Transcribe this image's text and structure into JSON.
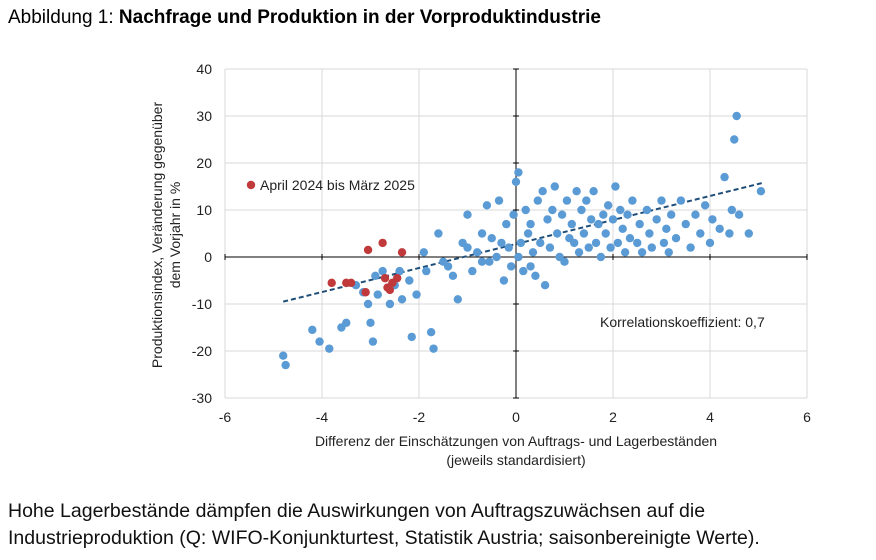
{
  "figure": {
    "title_prefix": "Abbildung 1: ",
    "title_main": "Nachfrage und Produktion in der Vorproduktindustrie",
    "caption": "Hohe Lagerbestände dämpfen die Auswirkungen von Auftragszuwächsen auf die Industrieproduktion (Q: WIFO-Konjunkturtest, Statistik Austria; saisonbereinigte Werte)."
  },
  "colors": {
    "blue_points": "#5B9BD5",
    "red_points": "#C0393B",
    "trend_line": "#1F4E79",
    "grid": "#D9D9D9",
    "axis": "#000000"
  },
  "chart_data": {
    "type": "scatter",
    "xlabel_line1": "Differenz der Einschätzungen von Auftrags- und Lagerbeständen",
    "xlabel_line2": "(jeweils standardisiert)",
    "ylabel_line1": "Produktionsindex, Veränderung gegenüber",
    "ylabel_line2": "dem Vorjahr in %",
    "xlim": [
      -6,
      6
    ],
    "ylim": [
      -30,
      40
    ],
    "x_ticks": [
      "-6",
      "-4",
      "-2",
      "0",
      "2",
      "4",
      "6"
    ],
    "y_ticks": [
      "40",
      "30",
      "20",
      "10",
      "0",
      "-10",
      "-20",
      "-30"
    ],
    "grid": "vertical and horizontal",
    "annotation": "Korrelationskoeffizient: 0,7",
    "legend": [
      {
        "label": "April 2024 bis März 2025",
        "color": "#C0393B"
      }
    ],
    "trendline": {
      "x": [
        -4.8,
        5.1
      ],
      "y": [
        -9.5,
        15.8
      ]
    },
    "series": [
      {
        "name": "",
        "color": "#5B9BD5",
        "points": [
          [
            -4.8,
            -21
          ],
          [
            -4.75,
            -23
          ],
          [
            -4.2,
            -15.5
          ],
          [
            -4.05,
            -18
          ],
          [
            -3.85,
            -19.5
          ],
          [
            -3.6,
            -15
          ],
          [
            -3.5,
            -14
          ],
          [
            -3.3,
            -6
          ],
          [
            -3.15,
            -7.5
          ],
          [
            -3.05,
            -10
          ],
          [
            -3.0,
            -14
          ],
          [
            -2.95,
            -18
          ],
          [
            -2.9,
            -4
          ],
          [
            -2.85,
            -8
          ],
          [
            -2.75,
            -3
          ],
          [
            -2.6,
            -10
          ],
          [
            -2.5,
            -6
          ],
          [
            -2.4,
            -3
          ],
          [
            -2.35,
            -9
          ],
          [
            -2.2,
            -5
          ],
          [
            -2.15,
            -17
          ],
          [
            -2.05,
            -8
          ],
          [
            -1.9,
            1
          ],
          [
            -1.85,
            -3
          ],
          [
            -1.75,
            -16
          ],
          [
            -1.7,
            -19.5
          ],
          [
            -1.6,
            5
          ],
          [
            -1.5,
            -1
          ],
          [
            -1.4,
            -2
          ],
          [
            -1.3,
            -4
          ],
          [
            -1.2,
            -9
          ],
          [
            -1.1,
            3
          ],
          [
            -1.0,
            9
          ],
          [
            -0.9,
            -3
          ],
          [
            -0.8,
            1
          ],
          [
            -0.7,
            5
          ],
          [
            -0.6,
            11
          ],
          [
            -0.55,
            -1
          ],
          [
            -0.5,
            4
          ],
          [
            -0.4,
            0
          ],
          [
            -0.35,
            12
          ],
          [
            -0.3,
            3
          ],
          [
            -0.25,
            -5
          ],
          [
            -0.2,
            7
          ],
          [
            -0.15,
            2
          ],
          [
            -0.1,
            -2
          ],
          [
            -0.05,
            9
          ],
          [
            0.0,
            16
          ],
          [
            0.05,
            18
          ],
          [
            0.05,
            0
          ],
          [
            0.1,
            3
          ],
          [
            0.15,
            -3
          ],
          [
            0.2,
            10
          ],
          [
            0.25,
            5
          ],
          [
            0.3,
            7
          ],
          [
            0.35,
            1
          ],
          [
            0.4,
            -4
          ],
          [
            0.45,
            12
          ],
          [
            0.5,
            3
          ],
          [
            0.55,
            14
          ],
          [
            0.6,
            -6
          ],
          [
            0.65,
            8
          ],
          [
            0.7,
            2
          ],
          [
            0.75,
            10
          ],
          [
            0.8,
            15
          ],
          [
            0.85,
            5
          ],
          [
            0.9,
            0
          ],
          [
            0.95,
            9
          ],
          [
            1.0,
            -1
          ],
          [
            1.05,
            12
          ],
          [
            1.1,
            4
          ],
          [
            1.15,
            7
          ],
          [
            1.2,
            3
          ],
          [
            1.25,
            14
          ],
          [
            1.3,
            1
          ],
          [
            1.35,
            10
          ],
          [
            1.4,
            5
          ],
          [
            1.45,
            12
          ],
          [
            1.5,
            2
          ],
          [
            1.55,
            8
          ],
          [
            1.6,
            14
          ],
          [
            1.65,
            3
          ],
          [
            1.7,
            7
          ],
          [
            1.75,
            0
          ],
          [
            1.8,
            9
          ],
          [
            1.85,
            5
          ],
          [
            1.9,
            11
          ],
          [
            1.95,
            2
          ],
          [
            2.0,
            8
          ],
          [
            2.05,
            15
          ],
          [
            2.1,
            3
          ],
          [
            2.15,
            10
          ],
          [
            2.2,
            6
          ],
          [
            2.25,
            1
          ],
          [
            2.3,
            9
          ],
          [
            2.35,
            4
          ],
          [
            2.4,
            12
          ],
          [
            2.5,
            3
          ],
          [
            2.55,
            7
          ],
          [
            2.6,
            1
          ],
          [
            2.7,
            10
          ],
          [
            2.75,
            5
          ],
          [
            2.8,
            2
          ],
          [
            2.9,
            8
          ],
          [
            3.0,
            12
          ],
          [
            3.05,
            3
          ],
          [
            3.1,
            6
          ],
          [
            3.15,
            1
          ],
          [
            3.2,
            9
          ],
          [
            3.3,
            4
          ],
          [
            3.4,
            12
          ],
          [
            3.5,
            7
          ],
          [
            3.6,
            2
          ],
          [
            3.7,
            9
          ],
          [
            3.8,
            5
          ],
          [
            3.9,
            11
          ],
          [
            4.0,
            3
          ],
          [
            4.05,
            8
          ],
          [
            4.2,
            6
          ],
          [
            4.3,
            17
          ],
          [
            4.4,
            5
          ],
          [
            4.45,
            10
          ],
          [
            4.5,
            25
          ],
          [
            4.55,
            30
          ],
          [
            4.6,
            9
          ],
          [
            4.8,
            5
          ],
          [
            5.05,
            14
          ],
          [
            -1.0,
            2
          ],
          [
            -0.7,
            -1
          ],
          [
            0.3,
            -2
          ]
        ]
      },
      {
        "name": "April 2024 bis März 2025",
        "color": "#C0393B",
        "points": [
          [
            -3.8,
            -5.5
          ],
          [
            -3.5,
            -5.5
          ],
          [
            -3.4,
            -5.5
          ],
          [
            -3.1,
            -7.5
          ],
          [
            -3.05,
            1.5
          ],
          [
            -2.75,
            3
          ],
          [
            -2.7,
            -4.5
          ],
          [
            -2.65,
            -6.5
          ],
          [
            -2.6,
            -7
          ],
          [
            -2.55,
            -5.5
          ],
          [
            -2.45,
            -4.5
          ],
          [
            -2.35,
            1
          ]
        ]
      }
    ]
  }
}
